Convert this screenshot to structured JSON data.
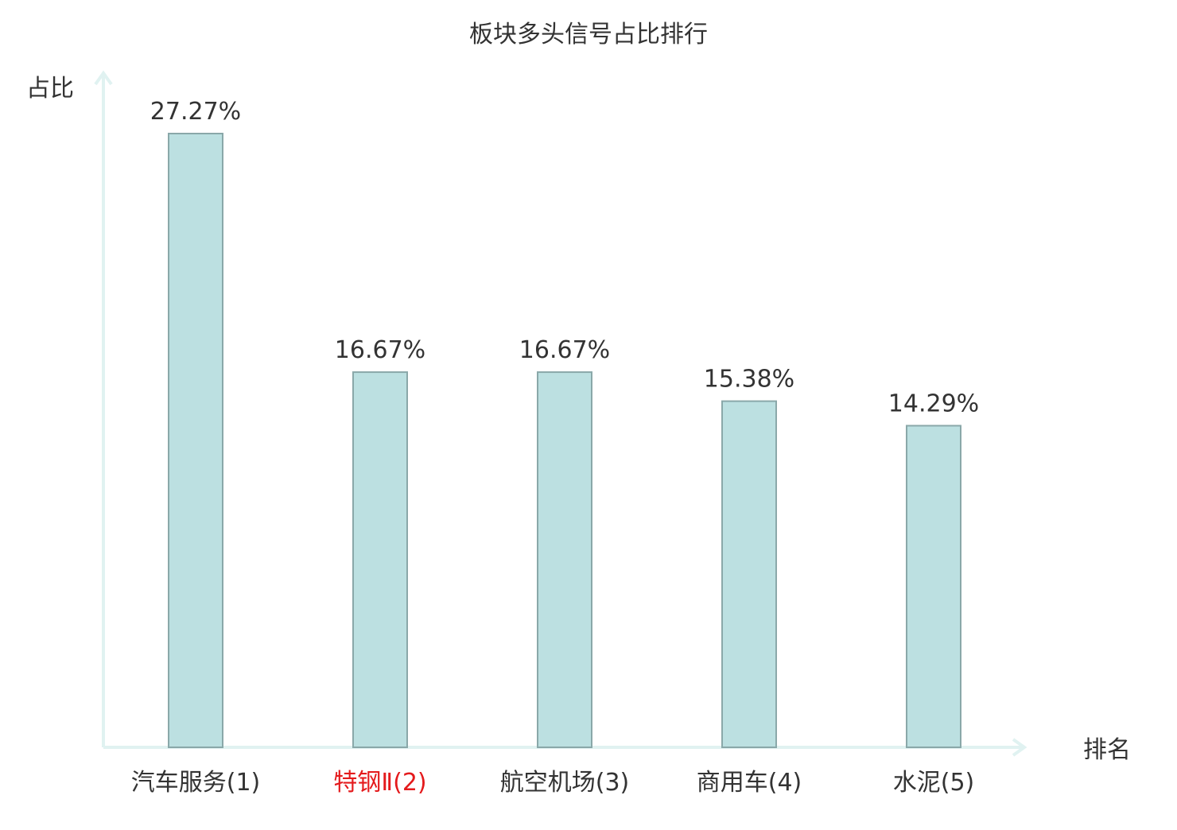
{
  "chart_data": {
    "type": "bar",
    "title": "板块多头信号占比排行",
    "ylabel": "占比",
    "xlabel": "排名",
    "categories": [
      {
        "name": "汽车服务",
        "rank": "(1)",
        "highlight": false
      },
      {
        "name": "特钢Ⅱ",
        "rank": "(2)",
        "highlight": true
      },
      {
        "name": "航空机场",
        "rank": "(3)",
        "highlight": false
      },
      {
        "name": "商用车",
        "rank": "(4)",
        "highlight": false
      },
      {
        "name": "水泥",
        "rank": "(5)",
        "highlight": false
      }
    ],
    "values": [
      27.27,
      16.67,
      16.67,
      15.38,
      14.29
    ],
    "value_labels": [
      "27.27%",
      "16.67%",
      "16.67%",
      "15.38%",
      "14.29%"
    ],
    "unit": "%",
    "ylim": [
      0,
      27.27
    ],
    "grid": false,
    "legend": "none"
  },
  "colors": {
    "bar_fill": "#bce0e1",
    "bar_stroke": "#8aa8a9",
    "axis": "#e0f2f1",
    "text": "#333333",
    "highlight": "#e41a1c"
  }
}
